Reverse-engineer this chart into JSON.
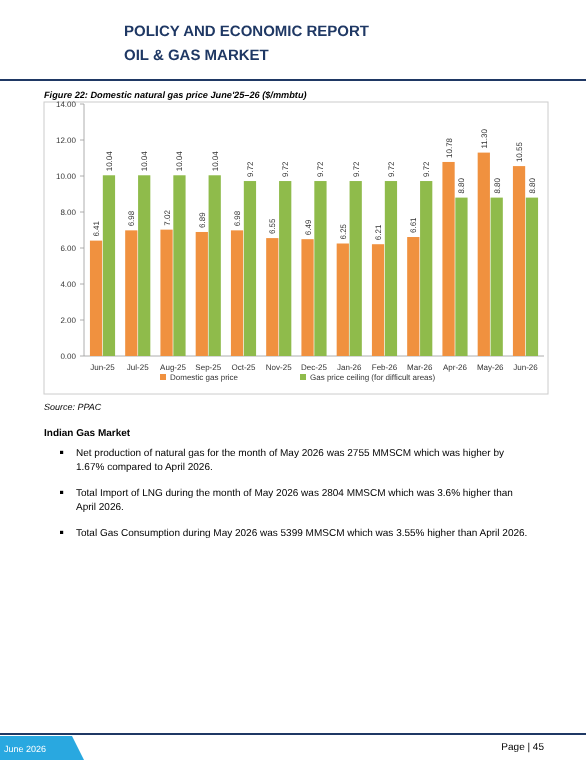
{
  "chart_data": {
    "type": "bar",
    "title": "Figure 22: Domestic natural gas price June'25–26 ($/mmbtu)",
    "categories": [
      "Jun-25",
      "Jul-25",
      "Aug-25",
      "Sep-25",
      "Oct-25",
      "Nov-25",
      "Dec-25",
      "Jan-26",
      "Feb-26",
      "Mar-26",
      "Apr-26",
      "May-26",
      "Jun-26"
    ],
    "series": [
      {
        "name": "Domestic gas price",
        "color": "#f0913f",
        "values": [
          6.41,
          6.98,
          7.02,
          6.89,
          6.98,
          6.55,
          6.49,
          6.25,
          6.21,
          6.61,
          10.78,
          11.3,
          10.55
        ],
        "value_labels": [
          "6.41",
          "6.98",
          "7.02",
          "6.89",
          "6.98",
          "6.55",
          "6.49",
          "6.25",
          "6.21",
          "6.61",
          "10.78",
          "11.30",
          "10.55"
        ]
      },
      {
        "name": "Gas price ceiling (for difficult areas)",
        "color": "#8fbb4b",
        "values": [
          10.04,
          10.04,
          10.04,
          10.04,
          9.72,
          9.72,
          9.72,
          9.72,
          9.72,
          9.72,
          8.8,
          8.8,
          8.8
        ],
        "value_labels": [
          "10.04",
          "10.04",
          "10.04",
          "10.04",
          "9.72",
          "9.72",
          "9.72",
          "9.72",
          "9.72",
          "9.72",
          "8.80",
          "8.80",
          "8.80"
        ]
      }
    ],
    "ylim": [
      0,
      14
    ],
    "yticks": [
      {
        "value": 0,
        "label": "0.00"
      },
      {
        "value": 2,
        "label": "2.00"
      },
      {
        "value": 4,
        "label": "4.00"
      },
      {
        "value": 6,
        "label": "6.00"
      },
      {
        "value": 8,
        "label": "8.00"
      },
      {
        "value": 10,
        "label": "10.00"
      },
      {
        "value": 12,
        "label": "12.00"
      },
      {
        "value": 14,
        "label": "14.00"
      }
    ],
    "legend": "bottom",
    "annotations": [
      "POLICY AND ECONOMIC REPORT",
      "OIL & GAS MARKET",
      "Source: PPAC",
      "Indian Gas Market",
      "Net production of natural gas for the month of May 2026 was 2755 MMSCM which was higher by 1.67% compared to April 2026.",
      "Total Import of LNG during the month of May 2026 was 2804 MMSCM which was 3.6% higher than April 2026.",
      "Total Gas Consumption during May 2026 was 5399 MMSCM which was 3.55% higher than April 2026.",
      "June 2026",
      "Page | 45"
    ]
  }
}
